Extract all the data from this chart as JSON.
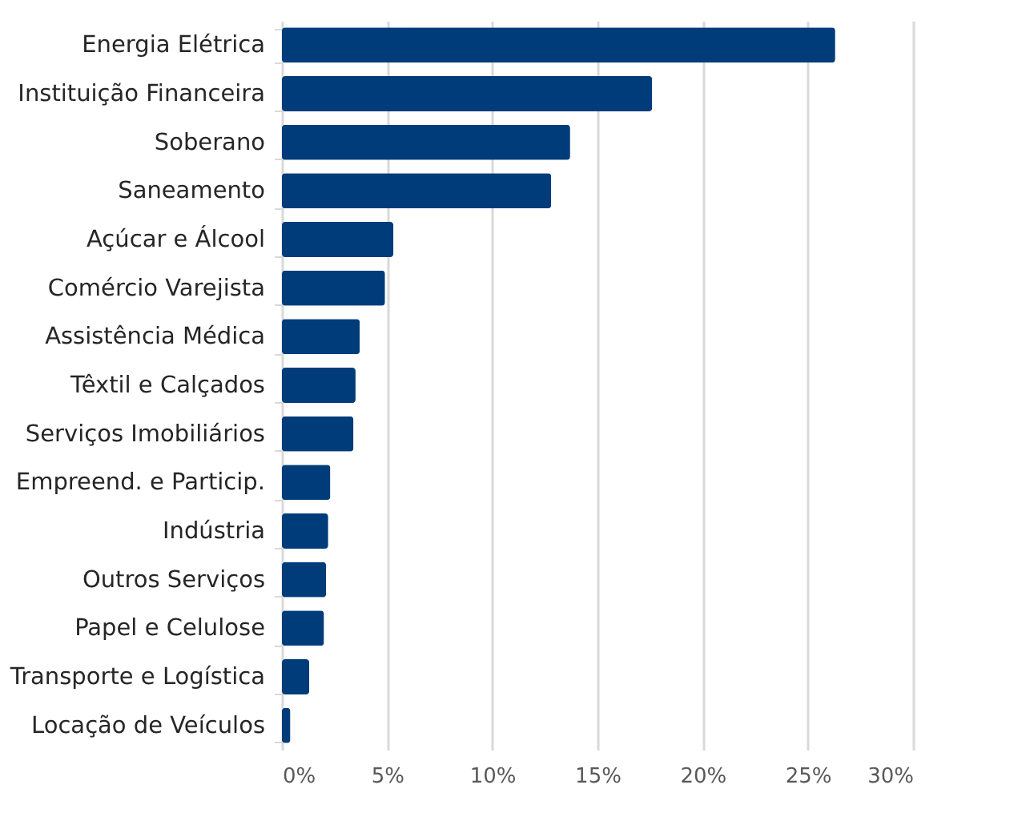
{
  "chart_data": {
    "type": "bar",
    "orientation": "horizontal",
    "categories": [
      "Energia Elétrica",
      "Instituição Financeira",
      "Soberano",
      "Saneamento",
      "Açúcar e Álcool",
      "Comércio Varejista",
      "Assistência Médica",
      "Têxtil e Calçados",
      "Serviços Imobiliários",
      "Empreend. e Particip.",
      "Indústria",
      "Outros Serviços",
      "Papel e Celulose",
      "Transporte e Logística",
      "Locação de Veículos"
    ],
    "values": [
      26.3,
      17.6,
      13.7,
      12.8,
      5.3,
      4.9,
      3.7,
      3.5,
      3.4,
      2.3,
      2.2,
      2.1,
      2.0,
      1.3,
      0.4
    ],
    "color": "#003b7a",
    "xlim": [
      0,
      30
    ],
    "xticks": [
      {
        "value": 0,
        "label": "0%"
      },
      {
        "value": 5,
        "label": "5%"
      },
      {
        "value": 10,
        "label": "10%"
      },
      {
        "value": 15,
        "label": "15%"
      },
      {
        "value": 20,
        "label": "20%"
      },
      {
        "value": 25,
        "label": "25%"
      },
      {
        "value": 30,
        "label": "30%"
      }
    ],
    "grid": "x"
  }
}
